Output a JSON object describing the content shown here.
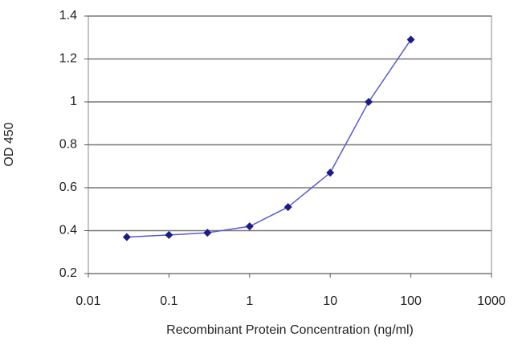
{
  "chart_data": {
    "type": "line",
    "xlabel": "Recombinant Protein Concentration (ng/ml)",
    "ylabel": "OD 450",
    "x": [
      0.03,
      0.1,
      0.3,
      1,
      3,
      10,
      30,
      100
    ],
    "series": [
      {
        "color": "#5a5ad0",
        "marker_color": "#1c1c86",
        "values": [
          0.37,
          0.38,
          0.39,
          0.42,
          0.51,
          0.67,
          1.0,
          1.29
        ]
      }
    ],
    "xscale": "log",
    "xlim": [
      0.01,
      1000
    ],
    "xticks": [
      0.01,
      0.1,
      1,
      10,
      100,
      1000
    ],
    "ylim": [
      0.2,
      1.4
    ],
    "yticks": [
      0.2,
      0.4,
      0.6,
      0.8,
      1,
      1.2,
      1.4
    ],
    "grid": true
  }
}
